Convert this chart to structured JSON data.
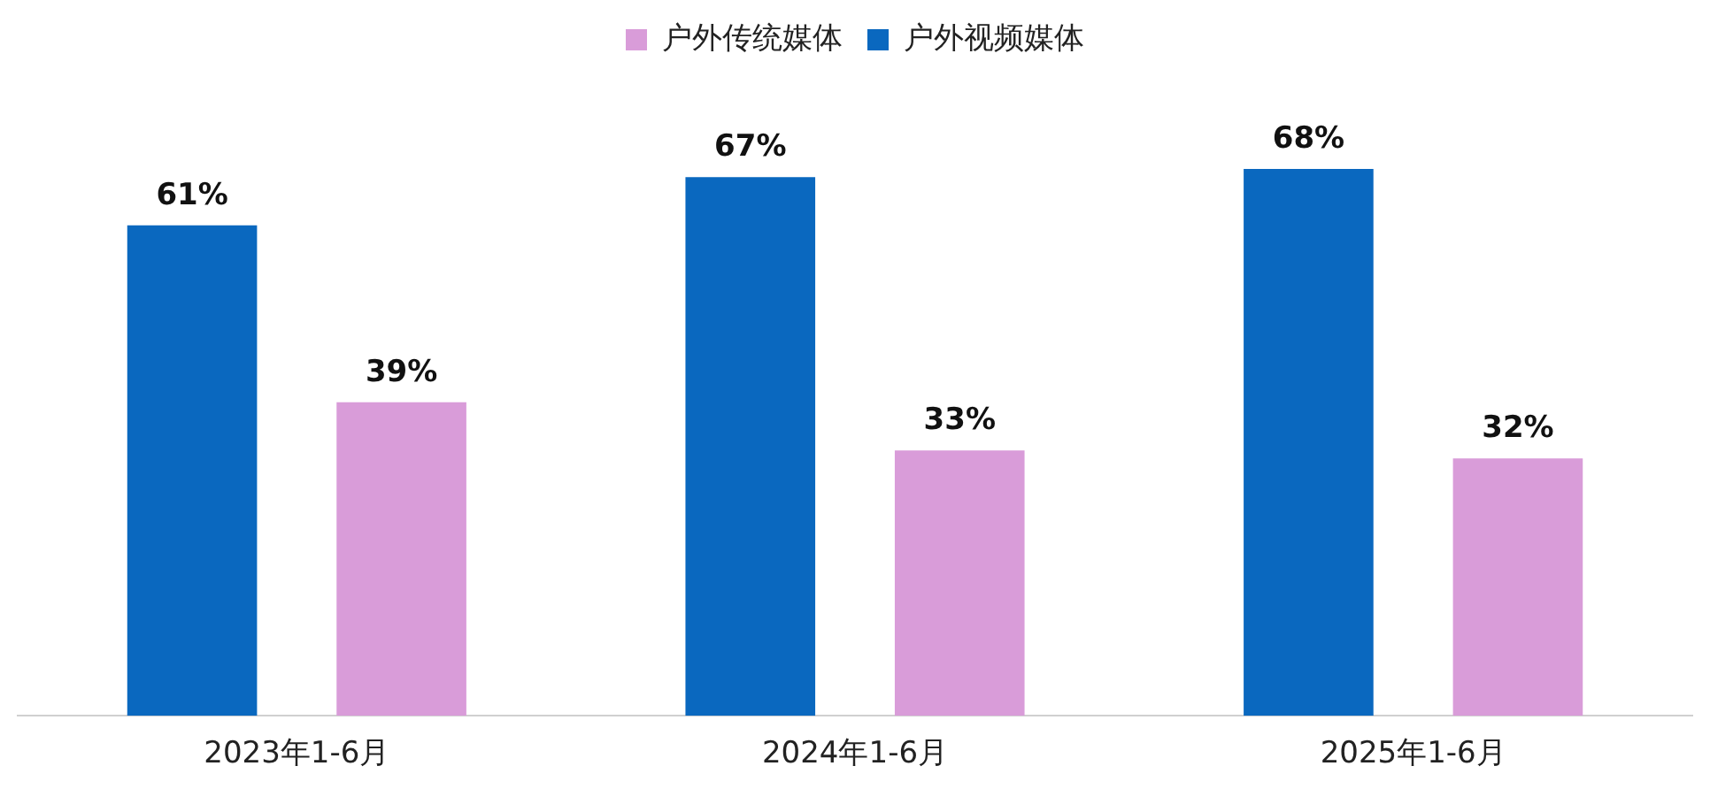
{
  "chart_data": {
    "type": "bar",
    "categories": [
      "2023年1-6月",
      "2024年1-6月",
      "2025年1-6月"
    ],
    "series": [
      {
        "name": "户外视频媒体",
        "color": "#0a68bf",
        "values": [
          61,
          67,
          68
        ],
        "value_labels": [
          "61%",
          "67%",
          "68%"
        ]
      },
      {
        "name": "户外传统媒体",
        "color": "#d99cd9",
        "values": [
          39,
          33,
          32
        ],
        "value_labels": [
          "39%",
          "33%",
          "32%"
        ]
      }
    ],
    "legend": "top",
    "grid": false,
    "tick_labels": "x"
  }
}
